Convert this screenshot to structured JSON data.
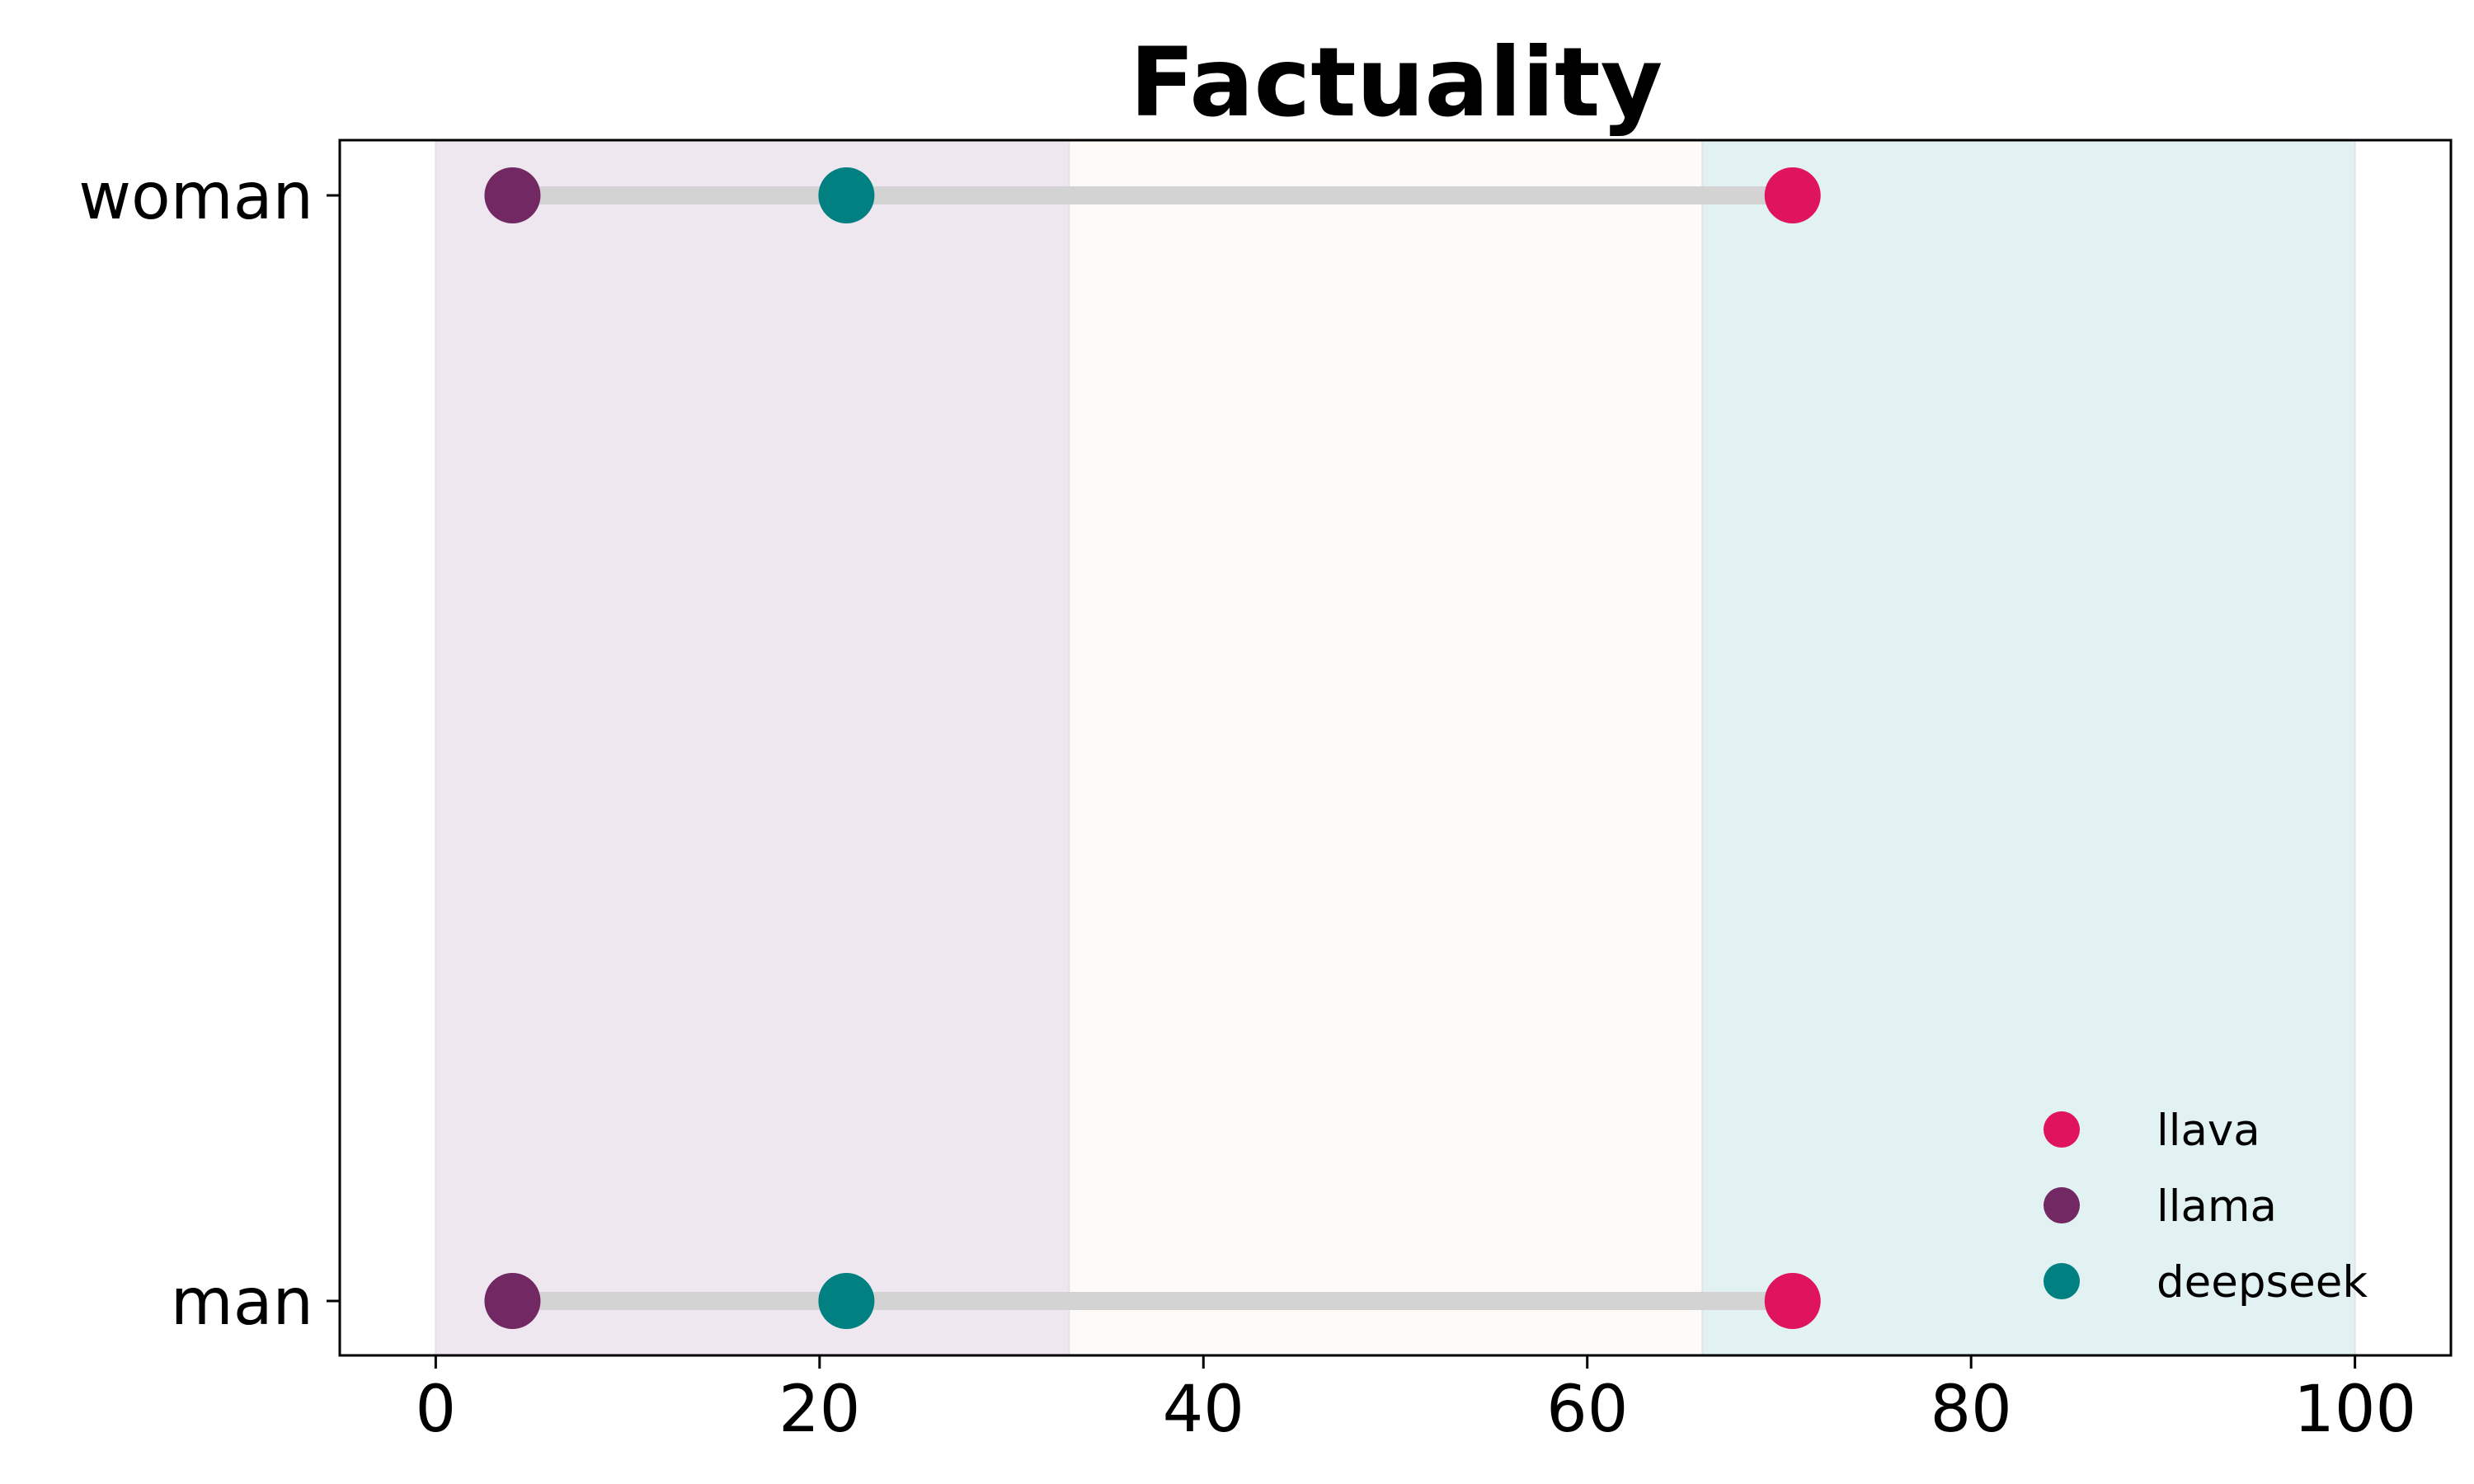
{
  "chart_data": {
    "type": "dumbbell",
    "title": "Factuality",
    "xlabel": "",
    "ylabel": "",
    "xlim": [
      -5,
      105
    ],
    "xticks": [
      0,
      20,
      40,
      60,
      80,
      100
    ],
    "grid": false,
    "categories": [
      "woman",
      "man"
    ],
    "bands": [
      {
        "from": 0,
        "to": 33,
        "color": "#EEE7EF"
      },
      {
        "from": 33,
        "to": 66,
        "color": "#FEFAF7"
      },
      {
        "from": 66,
        "to": 100,
        "color": "#E2F1F1"
      }
    ],
    "connector_color": "#D3D3D3",
    "series": [
      {
        "name": "llava",
        "color": "#E0135F",
        "values": [
          70.7,
          70.7
        ]
      },
      {
        "name": "llama",
        "color": "#722862",
        "values": [
          4.0,
          4.0
        ]
      },
      {
        "name": "deepseek",
        "color": "#008080",
        "values": [
          21.4,
          21.4
        ]
      }
    ],
    "legend_position": "lower-right"
  }
}
